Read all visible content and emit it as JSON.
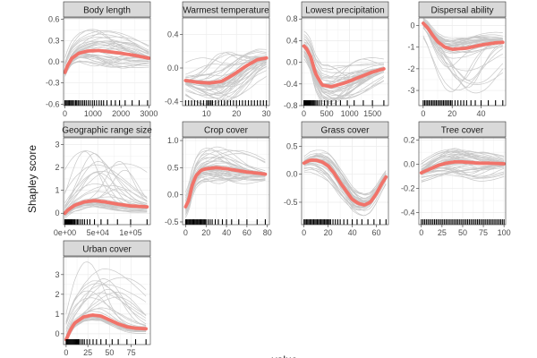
{
  "figure": {
    "ylabel": "Shapley score",
    "xlabel": "value",
    "colors": {
      "background": "#ffffff",
      "panel_background": "#ffffff",
      "strip_fill": "#d9d9d9",
      "strip_border": "#333333",
      "grid": "#ebebeb",
      "gray_curves": "#c8c8c8",
      "mean_curve": "#f1736a",
      "rug": "#000000"
    }
  },
  "chart_data": [
    {
      "type": "line",
      "title": "Body length",
      "xlim": [
        -50,
        3050
      ],
      "ylim": [
        -0.62,
        0.62
      ],
      "xticks": [
        0,
        1000,
        2000,
        3000
      ],
      "xtick_labels": [
        "0",
        "1000",
        "2000",
        "3000"
      ],
      "yticks": [
        -0.6,
        -0.3,
        0.0,
        0.3,
        0.6
      ],
      "ytick_labels": [
        "-0.6",
        "-0.3",
        "0.0",
        "0.3",
        "0.6"
      ],
      "mean_curve": {
        "x": [
          0,
          100,
          250,
          500,
          800,
          1200,
          1600,
          2000,
          2500,
          3000
        ],
        "y": [
          -0.15,
          -0.05,
          0.05,
          0.12,
          0.15,
          0.16,
          0.14,
          0.12,
          0.09,
          0.05
        ]
      },
      "curve_band": {
        "n": 40,
        "spread_low": -0.22,
        "spread_high": 0.3
      },
      "rug": [
        0,
        40,
        80,
        120,
        160,
        200,
        240,
        280,
        330,
        380,
        420,
        470,
        520,
        580,
        640,
        700,
        760,
        830,
        900,
        980,
        1050,
        1130,
        1220,
        1300,
        1380,
        1500,
        1650,
        1800,
        1950,
        2150,
        2400,
        2650,
        2950
      ]
    },
    {
      "type": "line",
      "title": "Warmest temperature",
      "xlim": [
        2,
        31
      ],
      "ylim": [
        -0.45,
        0.6
      ],
      "xticks": [
        10,
        20,
        30
      ],
      "xtick_labels": [
        "10",
        "20",
        "30"
      ],
      "yticks": [
        -0.4,
        0.0,
        0.4
      ],
      "ytick_labels": [
        "-0.4",
        "0.0",
        "0.4"
      ],
      "mean_curve": {
        "x": [
          3,
          7,
          11,
          15,
          19,
          23,
          27,
          30
        ],
        "y": [
          -0.15,
          -0.17,
          -0.18,
          -0.16,
          -0.08,
          0.02,
          0.1,
          0.12
        ]
      },
      "curve_band": {
        "n": 40,
        "spread_low": -0.3,
        "spread_high": 0.35
      },
      "rug": [
        3,
        4,
        5,
        6,
        7,
        8,
        9,
        10,
        10.5,
        11,
        11.5,
        12,
        13,
        14,
        15,
        16,
        17,
        18,
        19,
        20,
        21,
        22,
        23,
        24,
        25,
        26,
        27,
        28,
        29,
        30
      ]
    },
    {
      "type": "line",
      "title": "Lowest precipitation",
      "xlim": [
        -50,
        1850
      ],
      "ylim": [
        -0.8,
        0.82
      ],
      "xticks": [
        0,
        500,
        1000,
        1500
      ],
      "xtick_labels": [
        "0",
        "500",
        "1000",
        "1500"
      ],
      "yticks": [
        -0.8,
        -0.4,
        0.0,
        0.4,
        0.8
      ],
      "ytick_labels": [
        "-0.8",
        "-0.4",
        "0.0",
        "0.4",
        "0.8"
      ],
      "mean_curve": {
        "x": [
          0,
          60,
          150,
          250,
          400,
          600,
          900,
          1200,
          1500,
          1750
        ],
        "y": [
          0.3,
          0.25,
          0.1,
          -0.2,
          -0.42,
          -0.45,
          -0.38,
          -0.28,
          -0.18,
          -0.12
        ]
      },
      "curve_band": {
        "n": 40,
        "spread_low": -0.35,
        "spread_high": 0.4
      },
      "rug": [
        0,
        10,
        20,
        30,
        40,
        50,
        60,
        70,
        80,
        90,
        100,
        110,
        120,
        130,
        140,
        150,
        170,
        190,
        210,
        230,
        260,
        290,
        330,
        380,
        450,
        520,
        600,
        700,
        800,
        950,
        1100,
        1300,
        1500,
        1750
      ]
    },
    {
      "type": "line",
      "title": "Dispersal ability",
      "xlim": [
        -3,
        57
      ],
      "ylim": [
        -3.7,
        0.35
      ],
      "xticks": [
        0,
        20,
        40
      ],
      "xtick_labels": [
        "0",
        "20",
        "40"
      ],
      "yticks": [
        -3,
        -2,
        -1,
        0
      ],
      "ytick_labels": [
        "-3",
        "-2",
        "-1",
        "0"
      ],
      "mean_curve": {
        "x": [
          0,
          3,
          6,
          10,
          15,
          20,
          30,
          40,
          50,
          55
        ],
        "y": [
          0.1,
          -0.1,
          -0.4,
          -0.75,
          -1.0,
          -1.1,
          -1.05,
          -0.9,
          -0.8,
          -0.78
        ]
      },
      "curve_band": {
        "n": 40,
        "spread_low": -2.2,
        "spread_high": 0.5
      },
      "rug": [
        0,
        1,
        2,
        3,
        4,
        5,
        6,
        7,
        8,
        9,
        10,
        11,
        12,
        13,
        14,
        15,
        16,
        17,
        18,
        19,
        20,
        22,
        24,
        26,
        28,
        30,
        33,
        36,
        40,
        45,
        50,
        55
      ]
    },
    {
      "type": "line",
      "title": "Geographic range size",
      "xlim": [
        -2000,
        130000
      ],
      "ylim": [
        -0.5,
        3.3
      ],
      "xticks": [
        0,
        50000,
        100000
      ],
      "xtick_labels": [
        "0e+00",
        "5e+04",
        "1e+05"
      ],
      "yticks": [
        0,
        1,
        2,
        3
      ],
      "ytick_labels": [
        "0",
        "1",
        "2",
        "3"
      ],
      "mean_curve": {
        "x": [
          0,
          5000,
          15000,
          30000,
          45000,
          60000,
          80000,
          100000,
          125000
        ],
        "y": [
          0.0,
          0.15,
          0.35,
          0.5,
          0.55,
          0.5,
          0.4,
          0.32,
          0.28
        ]
      },
      "curve_band": {
        "n": 40,
        "spread_low": -0.3,
        "spread_high": 2.4
      },
      "rug": [
        0,
        500,
        1000,
        1500,
        2000,
        2500,
        3000,
        4000,
        5000,
        6000,
        7000,
        8000,
        9000,
        10000,
        11000,
        12000,
        13500,
        15000,
        17000,
        19000,
        21000,
        24000,
        27000,
        30000,
        34000,
        38000,
        45000,
        55000,
        65000,
        80000,
        100000,
        125000
      ]
    },
    {
      "type": "line",
      "title": "Crop cover",
      "xlim": [
        -3,
        82
      ],
      "ylim": [
        -0.55,
        1.05
      ],
      "xticks": [
        0,
        20,
        40,
        60,
        80
      ],
      "xtick_labels": [
        "0",
        "20",
        "40",
        "60",
        "80"
      ],
      "yticks": [
        -0.5,
        0.0,
        0.5,
        1.0
      ],
      "ytick_labels": [
        "-0.5",
        "0.0",
        "0.5",
        "1.0"
      ],
      "mean_curve": {
        "x": [
          0,
          3,
          6,
          10,
          15,
          20,
          30,
          40,
          50,
          60,
          70,
          78
        ],
        "y": [
          -0.22,
          -0.1,
          0.15,
          0.35,
          0.45,
          0.48,
          0.5,
          0.48,
          0.45,
          0.42,
          0.4,
          0.38
        ]
      },
      "curve_band": {
        "n": 40,
        "spread_low": -0.3,
        "spread_high": 0.4
      },
      "rug": [
        0,
        1,
        2,
        3,
        4,
        5,
        6,
        7,
        8,
        9,
        10,
        11,
        12,
        13,
        14,
        15,
        16,
        17,
        18,
        19,
        20,
        22,
        24,
        26,
        29,
        32,
        36,
        40,
        45,
        52,
        60,
        70,
        78
      ]
    },
    {
      "type": "line",
      "title": "Grass cover",
      "xlim": [
        -2,
        70
      ],
      "ylim": [
        -0.9,
        0.65
      ],
      "xticks": [
        0,
        20,
        40,
        60
      ],
      "xtick_labels": [
        "0",
        "20",
        "40",
        "60"
      ],
      "yticks": [
        -0.5,
        0.0,
        0.5
      ],
      "ytick_labels": [
        "-0.5",
        "0.0",
        "0.5"
      ],
      "mean_curve": {
        "x": [
          0,
          5,
          10,
          15,
          20,
          25,
          30,
          35,
          40,
          45,
          50,
          55,
          60,
          65,
          68
        ],
        "y": [
          0.2,
          0.25,
          0.25,
          0.22,
          0.15,
          0.02,
          -0.15,
          -0.3,
          -0.45,
          -0.52,
          -0.55,
          -0.5,
          -0.35,
          -0.15,
          -0.05
        ]
      },
      "curve_band": {
        "n": 40,
        "spread_low": -0.28,
        "spread_high": 0.28
      },
      "rug": [
        0,
        1,
        2,
        3,
        4,
        5,
        6,
        7,
        8,
        9,
        10,
        11,
        12,
        13,
        14,
        15,
        16,
        17,
        18,
        19,
        20,
        21,
        22,
        24,
        26,
        28,
        30,
        33,
        36,
        40,
        44,
        48,
        53,
        58,
        63,
        68
      ]
    },
    {
      "type": "line",
      "title": "Tree cover",
      "xlim": [
        -3,
        102
      ],
      "ylim": [
        -0.5,
        0.22
      ],
      "xticks": [
        0,
        25,
        50,
        75,
        100
      ],
      "xtick_labels": [
        "0",
        "25",
        "50",
        "75",
        "100"
      ],
      "yticks": [
        -0.4,
        -0.2,
        0.0,
        0.2
      ],
      "ytick_labels": [
        "-0.4",
        "-0.2",
        "0.0",
        "0.2"
      ],
      "mean_curve": {
        "x": [
          0,
          10,
          20,
          30,
          40,
          50,
          60,
          70,
          80,
          90,
          100
        ],
        "y": [
          -0.07,
          -0.04,
          -0.01,
          0.01,
          0.02,
          0.02,
          0.015,
          0.01,
          0.01,
          0.008,
          0.005
        ]
      },
      "curve_band": {
        "n": 40,
        "spread_low": -0.15,
        "spread_high": 0.12
      },
      "rug": [
        0,
        2,
        4,
        6,
        8,
        10,
        12,
        14,
        16,
        18,
        20,
        22,
        24,
        26,
        28,
        30,
        32,
        34,
        36,
        38,
        40,
        42,
        44,
        46,
        48,
        50,
        52,
        54,
        56,
        58,
        60,
        62,
        64,
        66,
        68,
        70,
        72,
        74,
        76,
        78,
        80,
        82,
        84,
        86,
        88,
        90,
        92,
        94,
        96,
        98,
        100
      ]
    },
    {
      "type": "line",
      "title": "Urban cover",
      "xlim": [
        -3,
        97
      ],
      "ylim": [
        -0.55,
        3.9
      ],
      "xticks": [
        0,
        25,
        50,
        75
      ],
      "xtick_labels": [
        "0",
        "25",
        "50",
        "75"
      ],
      "yticks": [
        0,
        1,
        2,
        3
      ],
      "ytick_labels": [
        "0",
        "1",
        "2",
        "3"
      ],
      "mean_curve": {
        "x": [
          0,
          5,
          10,
          20,
          30,
          40,
          50,
          60,
          70,
          80,
          92
        ],
        "y": [
          -0.3,
          0.2,
          0.55,
          0.85,
          0.95,
          0.9,
          0.7,
          0.5,
          0.35,
          0.28,
          0.25
        ]
      },
      "curve_band": {
        "n": 40,
        "spread_low": -0.25,
        "spread_high": 2.8
      },
      "rug": [
        0,
        1,
        2,
        3,
        4,
        5,
        6,
        7,
        8,
        9,
        10,
        11,
        12,
        13,
        14,
        15,
        17,
        19,
        21,
        24,
        27,
        31,
        35,
        40,
        46,
        53,
        60,
        70,
        80,
        92
      ]
    }
  ]
}
